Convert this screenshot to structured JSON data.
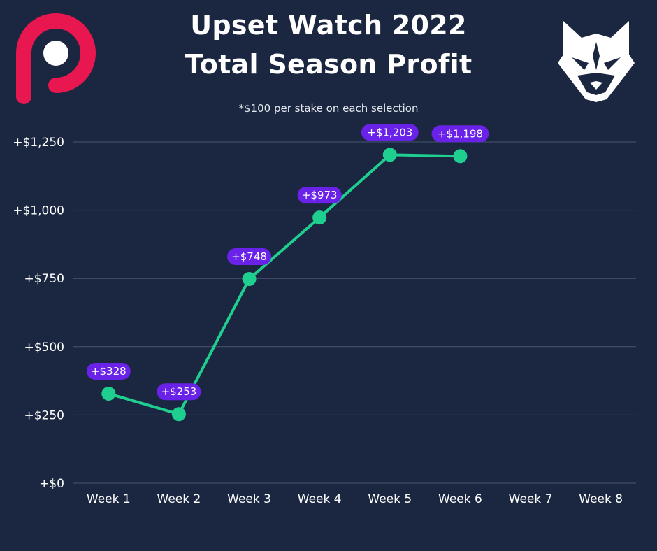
{
  "header": {
    "title_line1": "Upset Watch 2022",
    "title_line2": "Total Season Profit",
    "subtitle": "*$100 per stake on each selection"
  },
  "logos": {
    "left": "p-logo",
    "right": "wolf-logo"
  },
  "colors": {
    "background": "#1b2741",
    "line": "#1fcf8f",
    "marker": "#1fcf8f",
    "label_bg": "#6a21e8",
    "grid": "#4a5670",
    "logo_p": "#e8174f"
  },
  "chart_data": {
    "type": "line",
    "categories": [
      "Week 1",
      "Week 2",
      "Week 3",
      "Week 4",
      "Week 5",
      "Week 6",
      "Week 7",
      "Week 8"
    ],
    "series": [
      {
        "values": [
          328,
          253,
          748,
          973,
          1203,
          1198,
          null,
          null
        ]
      }
    ],
    "data_labels": [
      "+$328",
      "+$253",
      "+$748",
      "+$973",
      "+$1,203",
      "+$1,198"
    ],
    "y_ticks": [
      0,
      250,
      500,
      750,
      1000,
      1250
    ],
    "y_tick_labels": [
      "+$0",
      "+$250",
      "+$500",
      "+$750",
      "+$1,000",
      "+$1,250"
    ],
    "ylim": [
      0,
      1250
    ],
    "grid": true,
    "legend": "none"
  }
}
